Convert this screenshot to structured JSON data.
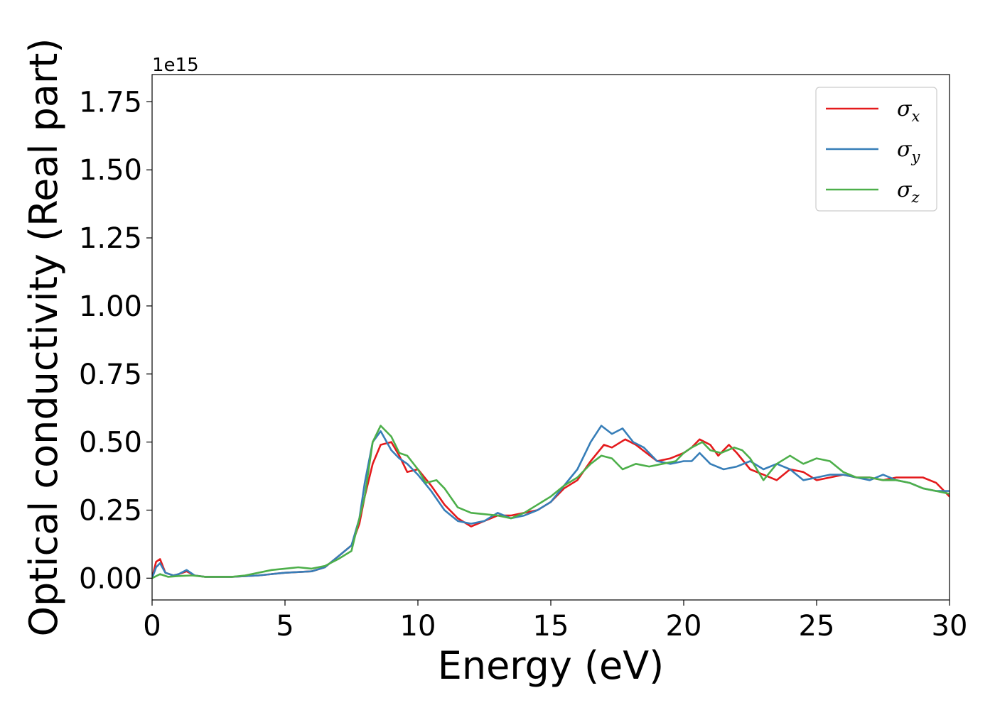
{
  "chart_data": {
    "type": "line",
    "xlabel": "Energy (eV)",
    "ylabel": "Optical conductivity (Real part)",
    "offset_label": "1e15",
    "xlim": [
      0,
      30
    ],
    "ylim": [
      -0.08,
      1.85
    ],
    "x_ticks": [
      0,
      5,
      10,
      15,
      20,
      25,
      30
    ],
    "x_tick_labels": [
      "0",
      "5",
      "10",
      "15",
      "20",
      "25",
      "30"
    ],
    "y_ticks": [
      0,
      0.25,
      0.5,
      0.75,
      1.0,
      1.25,
      1.5,
      1.75
    ],
    "y_tick_labels": [
      "0.00",
      "0.25",
      "0.50",
      "0.75",
      "1.00",
      "1.25",
      "1.50",
      "1.75"
    ],
    "grid": false,
    "legend_position": "top-right",
    "series": [
      {
        "name": "σ",
        "sub": "x",
        "color": "#e41a1c",
        "x": [
          0,
          0.15,
          0.3,
          0.5,
          0.8,
          1.0,
          1.3,
          1.6,
          2.0,
          3.0,
          4.0,
          5.0,
          6.0,
          6.5,
          7.0,
          7.5,
          7.8,
          8.0,
          8.3,
          8.6,
          9.0,
          9.3,
          9.6,
          10.0,
          10.5,
          11.0,
          11.5,
          12.0,
          12.5,
          13.0,
          13.5,
          14.0,
          14.5,
          15.0,
          15.5,
          16.0,
          16.5,
          17.0,
          17.3,
          17.8,
          18.2,
          18.6,
          19.0,
          19.5,
          20.0,
          20.3,
          20.6,
          21.0,
          21.3,
          21.7,
          22.0,
          22.5,
          23.0,
          23.5,
          24.0,
          24.5,
          25.0,
          25.5,
          26.0,
          26.5,
          27.0,
          27.5,
          28.0,
          28.5,
          29.0,
          29.5,
          30.0
        ],
        "y": [
          0.0,
          0.06,
          0.07,
          0.02,
          0.01,
          0.015,
          0.025,
          0.01,
          0.005,
          0.005,
          0.01,
          0.02,
          0.025,
          0.04,
          0.08,
          0.12,
          0.2,
          0.3,
          0.42,
          0.49,
          0.5,
          0.45,
          0.39,
          0.4,
          0.34,
          0.27,
          0.22,
          0.19,
          0.21,
          0.23,
          0.23,
          0.24,
          0.25,
          0.28,
          0.33,
          0.36,
          0.43,
          0.49,
          0.48,
          0.51,
          0.49,
          0.46,
          0.43,
          0.44,
          0.46,
          0.48,
          0.51,
          0.49,
          0.45,
          0.49,
          0.46,
          0.4,
          0.38,
          0.36,
          0.4,
          0.39,
          0.36,
          0.37,
          0.38,
          0.37,
          0.37,
          0.36,
          0.37,
          0.37,
          0.37,
          0.35,
          0.3
        ]
      },
      {
        "name": "σ",
        "sub": "y",
        "color": "#377eb8",
        "x": [
          0,
          0.15,
          0.3,
          0.5,
          0.8,
          1.0,
          1.3,
          1.6,
          2.0,
          3.0,
          4.0,
          5.0,
          6.0,
          6.5,
          7.0,
          7.5,
          7.8,
          8.0,
          8.3,
          8.6,
          9.0,
          9.3,
          9.6,
          10.0,
          10.5,
          11.0,
          11.5,
          12.0,
          12.5,
          13.0,
          13.5,
          14.0,
          14.5,
          15.0,
          15.5,
          16.0,
          16.5,
          16.9,
          17.3,
          17.7,
          18.1,
          18.5,
          19.0,
          19.5,
          20.0,
          20.3,
          20.6,
          21.0,
          21.5,
          22.0,
          22.5,
          23.0,
          23.5,
          24.0,
          24.5,
          25.0,
          25.5,
          26.0,
          26.5,
          27.0,
          27.5,
          28.0,
          28.5,
          29.0,
          29.5,
          30.0
        ],
        "y": [
          0.0,
          0.04,
          0.055,
          0.02,
          0.01,
          0.015,
          0.03,
          0.01,
          0.005,
          0.005,
          0.01,
          0.02,
          0.025,
          0.04,
          0.08,
          0.12,
          0.22,
          0.35,
          0.5,
          0.54,
          0.47,
          0.44,
          0.42,
          0.38,
          0.32,
          0.25,
          0.21,
          0.2,
          0.21,
          0.24,
          0.22,
          0.23,
          0.25,
          0.28,
          0.34,
          0.4,
          0.5,
          0.56,
          0.53,
          0.55,
          0.5,
          0.48,
          0.43,
          0.42,
          0.43,
          0.43,
          0.46,
          0.42,
          0.4,
          0.41,
          0.43,
          0.4,
          0.42,
          0.4,
          0.36,
          0.37,
          0.38,
          0.38,
          0.37,
          0.36,
          0.38,
          0.36,
          0.35,
          0.33,
          0.32,
          0.32
        ]
      },
      {
        "name": "σ",
        "sub": "z",
        "color": "#4daf4a",
        "x": [
          0,
          0.3,
          0.6,
          1.0,
          1.5,
          2.0,
          3.0,
          3.5,
          4.0,
          4.5,
          5.0,
          5.5,
          6.0,
          6.5,
          7.0,
          7.5,
          8.0,
          8.3,
          8.6,
          9.0,
          9.3,
          9.6,
          10.0,
          10.3,
          10.7,
          11.0,
          11.5,
          12.0,
          12.5,
          13.0,
          13.5,
          14.0,
          14.5,
          15.0,
          15.5,
          16.0,
          16.5,
          16.9,
          17.3,
          17.7,
          18.2,
          18.7,
          19.2,
          19.7,
          20.0,
          20.3,
          20.7,
          21.0,
          21.4,
          21.9,
          22.2,
          22.5,
          23.0,
          23.5,
          24.0,
          24.5,
          25.0,
          25.5,
          26.0,
          26.5,
          27.0,
          27.5,
          28.0,
          28.5,
          29.0,
          29.5,
          30.0
        ],
        "y": [
          0.0,
          0.015,
          0.005,
          0.008,
          0.01,
          0.005,
          0.005,
          0.01,
          0.02,
          0.03,
          0.035,
          0.04,
          0.035,
          0.045,
          0.07,
          0.1,
          0.3,
          0.5,
          0.56,
          0.52,
          0.46,
          0.45,
          0.4,
          0.35,
          0.36,
          0.33,
          0.26,
          0.24,
          0.235,
          0.23,
          0.22,
          0.24,
          0.27,
          0.3,
          0.34,
          0.37,
          0.42,
          0.45,
          0.44,
          0.4,
          0.42,
          0.41,
          0.42,
          0.43,
          0.46,
          0.48,
          0.5,
          0.47,
          0.46,
          0.48,
          0.47,
          0.44,
          0.36,
          0.42,
          0.45,
          0.42,
          0.44,
          0.43,
          0.39,
          0.37,
          0.37,
          0.36,
          0.36,
          0.35,
          0.33,
          0.32,
          0.31
        ]
      }
    ]
  }
}
